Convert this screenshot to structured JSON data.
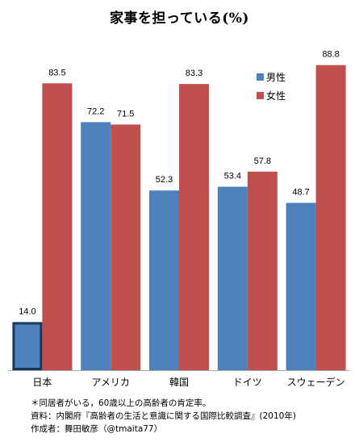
{
  "chart_data": {
    "type": "bar",
    "title": "家事を担っている(%)",
    "categories": [
      "日本",
      "アメリカ",
      "韓国",
      "ドイツ",
      "スウェーデン"
    ],
    "series": [
      {
        "name": "男性",
        "color": "#4f81bd",
        "values": [
          14.0,
          72.2,
          52.3,
          53.4,
          48.7
        ]
      },
      {
        "name": "女性",
        "color": "#c0504d",
        "values": [
          83.5,
          71.5,
          83.3,
          57.8,
          88.8
        ]
      }
    ],
    "value_labels": {
      "男性": [
        "14.0",
        "72.2",
        "52.3",
        "53.4",
        "48.7"
      ],
      "女性": [
        "83.5",
        "71.5",
        "83.3",
        "57.8",
        "88.8"
      ]
    },
    "ylim": [
      0,
      100
    ],
    "grid": false,
    "legend_position": "top-right",
    "highlighted_bar": {
      "series": "男性",
      "category": "日本",
      "outline_color": "#17375e"
    }
  },
  "notes": [
    "＊同居者がいる，60歳以上の高齢者の肯定率。",
    "資料：内閣府『高齢者の生活と意識に関する国際比較調査』(2010年)",
    "作成者：舞田敏彦（@tmaita77）"
  ]
}
